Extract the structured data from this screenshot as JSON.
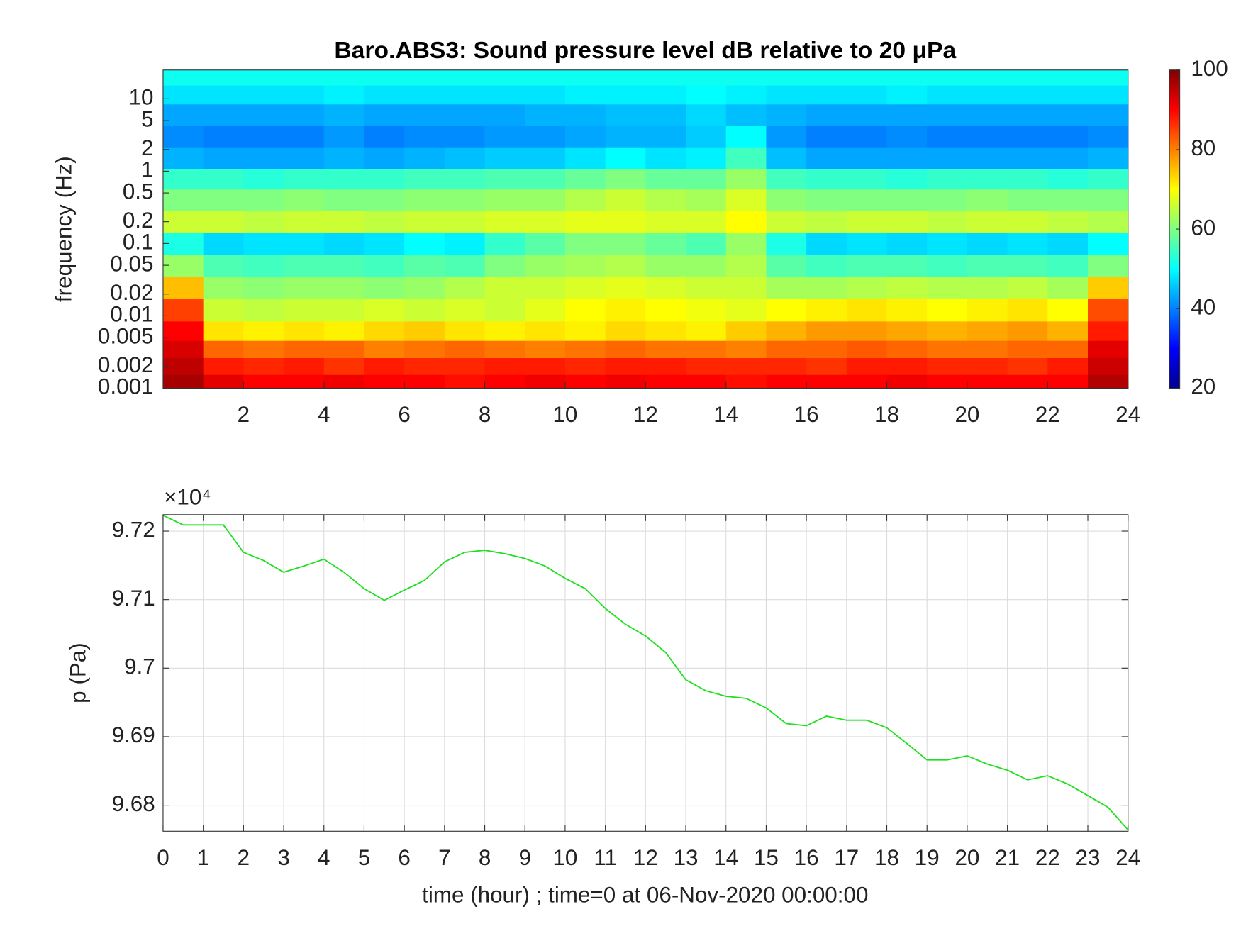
{
  "chart_data": [
    {
      "type": "heatmap",
      "title": "Baro.ABS3: Sound pressure level dB relative to 20 μPa",
      "ylabel": "frequency (Hz)",
      "y_log": true,
      "colormap": "jet",
      "x": [
        0.5,
        1.5,
        2.5,
        3.5,
        4.5,
        5.5,
        6.5,
        7.5,
        8.5,
        9.5,
        10.5,
        11.5,
        12.5,
        13.5,
        14.5,
        15.5,
        16.5,
        17.5,
        18.5,
        19.5,
        20.5,
        21.5,
        22.5,
        23.5
      ],
      "y": [
        0.0012,
        0.002,
        0.0035,
        0.006,
        0.012,
        0.025,
        0.05,
        0.1,
        0.2,
        0.4,
        0.8,
        1.5,
        3,
        6,
        12,
        20
      ],
      "z": [
        [
          97,
          92,
          90,
          90,
          91,
          90,
          90,
          89,
          90,
          91,
          90,
          91,
          90,
          90,
          89,
          90,
          90,
          90,
          91,
          90,
          90,
          90,
          90,
          96
        ],
        [
          95,
          88,
          87,
          88,
          86,
          88,
          87,
          87,
          88,
          88,
          87,
          88,
          88,
          87,
          87,
          87,
          86,
          88,
          88,
          87,
          87,
          86,
          88,
          94
        ],
        [
          93,
          82,
          81,
          82,
          82,
          80,
          81,
          82,
          81,
          80,
          81,
          82,
          81,
          81,
          80,
          82,
          82,
          83,
          82,
          81,
          81,
          82,
          82,
          92
        ],
        [
          90,
          72,
          71,
          72,
          71,
          73,
          74,
          72,
          71,
          72,
          71,
          73,
          72,
          71,
          74,
          76,
          78,
          78,
          77,
          76,
          77,
          78,
          76,
          88
        ],
        [
          85,
          66,
          65,
          66,
          66,
          67,
          66,
          67,
          66,
          68,
          70,
          71,
          70,
          69,
          68,
          70,
          71,
          72,
          71,
          70,
          71,
          72,
          70,
          84
        ],
        [
          75,
          62,
          61,
          62,
          62,
          61,
          62,
          64,
          66,
          66,
          67,
          68,
          67,
          66,
          66,
          63,
          63,
          64,
          65,
          64,
          64,
          65,
          63,
          74
        ],
        [
          62,
          56,
          55,
          56,
          56,
          55,
          57,
          56,
          60,
          62,
          63,
          64,
          62,
          62,
          64,
          57,
          55,
          56,
          56,
          55,
          56,
          56,
          55,
          60
        ],
        [
          52,
          47,
          48,
          48,
          47,
          48,
          50,
          49,
          54,
          57,
          60,
          60,
          58,
          56,
          62,
          52,
          47,
          48,
          47,
          48,
          47,
          48,
          47,
          50
        ],
        [
          66,
          66,
          65,
          66,
          66,
          65,
          66,
          66,
          67,
          67,
          68,
          68,
          67,
          67,
          70,
          66,
          65,
          66,
          66,
          65,
          66,
          66,
          65,
          64
        ],
        [
          60,
          60,
          60,
          61,
          60,
          60,
          61,
          61,
          62,
          62,
          64,
          66,
          64,
          63,
          67,
          61,
          60,
          60,
          60,
          60,
          61,
          60,
          60,
          60
        ],
        [
          54,
          54,
          53,
          54,
          54,
          54,
          55,
          55,
          56,
          56,
          58,
          60,
          58,
          58,
          62,
          55,
          54,
          54,
          53,
          54,
          54,
          54,
          53,
          54
        ],
        [
          44,
          43,
          43,
          43,
          44,
          43,
          44,
          45,
          46,
          46,
          48,
          50,
          48,
          49,
          55,
          45,
          43,
          43,
          43,
          43,
          43,
          43,
          43,
          44
        ],
        [
          41,
          40,
          40,
          40,
          42,
          40,
          41,
          41,
          42,
          42,
          43,
          44,
          44,
          46,
          50,
          42,
          40,
          40,
          41,
          40,
          40,
          40,
          40,
          41
        ],
        [
          43,
          43,
          43,
          43,
          44,
          43,
          43,
          43,
          43,
          44,
          44,
          45,
          45,
          47,
          45,
          44,
          43,
          43,
          43,
          43,
          43,
          43,
          43,
          43
        ],
        [
          48,
          48,
          48,
          48,
          49,
          48,
          48,
          48,
          48,
          48,
          49,
          49,
          49,
          50,
          49,
          48,
          48,
          48,
          49,
          48,
          48,
          48,
          48,
          48
        ],
        [
          51,
          51,
          51,
          51,
          51,
          51,
          51,
          51,
          51,
          51,
          51,
          51,
          51,
          51,
          51,
          51,
          51,
          51,
          51,
          51,
          51,
          51,
          51,
          51
        ]
      ],
      "xlim": [
        0,
        24
      ],
      "xticks": [
        2,
        4,
        6,
        8,
        10,
        12,
        14,
        16,
        18,
        20,
        22,
        24
      ],
      "ylim": [
        0.001,
        25
      ],
      "yticks": [
        0.001,
        0.002,
        0.005,
        0.01,
        0.02,
        0.05,
        0.1,
        0.2,
        0.5,
        1,
        2,
        5,
        10
      ],
      "clim": [
        20,
        100
      ],
      "cticks": [
        20,
        40,
        60,
        80,
        100
      ]
    },
    {
      "type": "line",
      "xlabel": "time (hour) ; time=0 at 06-Nov-2020 00:00:00",
      "ylabel": "p (Pa)",
      "y_exponent": "×10⁴",
      "color": "#1ee01e",
      "grid": true,
      "x": [
        0,
        0.5,
        1,
        1.5,
        2,
        2.5,
        3,
        3.5,
        4,
        4.5,
        5,
        5.5,
        6,
        6.5,
        7,
        7.5,
        8,
        8.5,
        9,
        9.5,
        10,
        10.5,
        11,
        11.5,
        12,
        12.5,
        13,
        13.5,
        14,
        14.5,
        15,
        15.5,
        16,
        16.5,
        17,
        17.5,
        18,
        18.5,
        19,
        19.5,
        20,
        20.5,
        21,
        21.5,
        22,
        22.5,
        23,
        23.5,
        24
      ],
      "values": [
        97223,
        97209,
        97209,
        97209,
        97169,
        97157,
        97140,
        97149,
        97159,
        97140,
        97116,
        97099,
        97114,
        97128,
        97155,
        97169,
        97172,
        97167,
        97160,
        97149,
        97131,
        97116,
        97087,
        97064,
        97047,
        97023,
        96983,
        96967,
        96959,
        96956,
        96942,
        96919,
        96916,
        96930,
        96924,
        96924,
        96913,
        96890,
        96866,
        96866,
        96872,
        96860,
        96851,
        96837,
        96843,
        96831,
        96814,
        96797,
        96764
      ],
      "xlim": [
        0,
        24
      ],
      "xticks": [
        0,
        1,
        2,
        3,
        4,
        5,
        6,
        7,
        8,
        9,
        10,
        11,
        12,
        13,
        14,
        15,
        16,
        17,
        18,
        19,
        20,
        21,
        22,
        23,
        24
      ],
      "ylim": [
        96762,
        97224
      ],
      "yticks": [
        {
          "value": 96800,
          "label": "9.68"
        },
        {
          "value": 96900,
          "label": "9.69"
        },
        {
          "value": 97000,
          "label": "9.7"
        },
        {
          "value": 97100,
          "label": "9.71"
        },
        {
          "value": 97200,
          "label": "9.72"
        }
      ]
    }
  ]
}
